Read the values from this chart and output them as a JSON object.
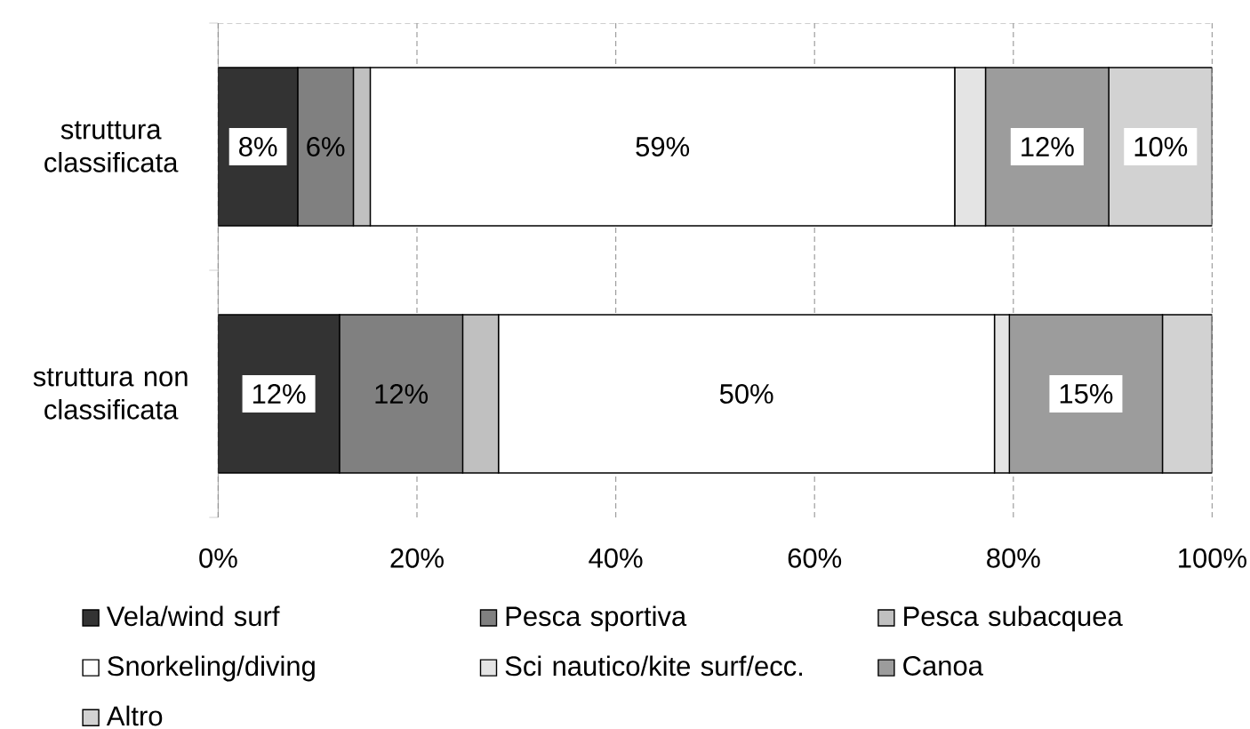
{
  "chart_data": {
    "type": "bar",
    "orientation": "horizontal",
    "stacked": true,
    "categories": [
      "struttura classificata",
      "struttura non classificata"
    ],
    "series": [
      {
        "name": "Vela/wind surf",
        "color": "#333333",
        "values": [
          8.0,
          12.2
        ],
        "value_labels": [
          "8%",
          "12%"
        ]
      },
      {
        "name": "Pesca sportiva",
        "color": "#808080",
        "values": [
          5.6,
          12.4
        ],
        "value_labels": [
          "6%",
          "12%"
        ]
      },
      {
        "name": "Pesca subacquea",
        "color": "#c0c0c0",
        "values": [
          1.7,
          3.6
        ],
        "value_labels": [
          null,
          null
        ]
      },
      {
        "name": "Snorkeling/diving",
        "color": "#ffffff",
        "values": [
          58.8,
          49.9
        ],
        "value_labels": [
          "59%",
          "50%"
        ]
      },
      {
        "name": "Sci nautico/kite surf/ecc.",
        "color": "#e4e4e4",
        "values": [
          3.1,
          1.5
        ],
        "value_labels": [
          null,
          null
        ]
      },
      {
        "name": "Canoa",
        "color": "#9c9c9c",
        "values": [
          12.4,
          15.4
        ],
        "value_labels": [
          "12%",
          "15%"
        ]
      },
      {
        "name": "Altro",
        "color": "#d2d2d2",
        "values": [
          10.4,
          5.0
        ],
        "value_labels": [
          "10%",
          null
        ]
      }
    ],
    "xlim": [
      0,
      100
    ],
    "xticks": [
      {
        "value": 0,
        "label": "0%"
      },
      {
        "value": 20,
        "label": "20%"
      },
      {
        "value": 40,
        "label": "40%"
      },
      {
        "value": 60,
        "label": "60%"
      },
      {
        "value": 80,
        "label": "80%"
      },
      {
        "value": 100,
        "label": "100%"
      }
    ],
    "grid": "x",
    "legend": "bottom"
  }
}
